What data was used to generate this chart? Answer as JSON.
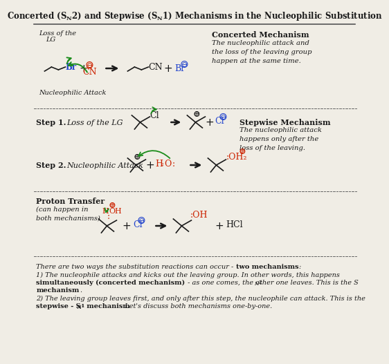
{
  "bg_color": "#f0ede5",
  "text_color": "#1a1a1a",
  "green": "#1a8c1a",
  "red": "#cc2200",
  "blue": "#2244cc",
  "title": "Concerted (S",
  "title_sub1": "N",
  "title_2": "2) and Stepwise (S",
  "title_sub2": "N",
  "title_3": "1) Mechanisms in the Nucleophilic Substitution"
}
